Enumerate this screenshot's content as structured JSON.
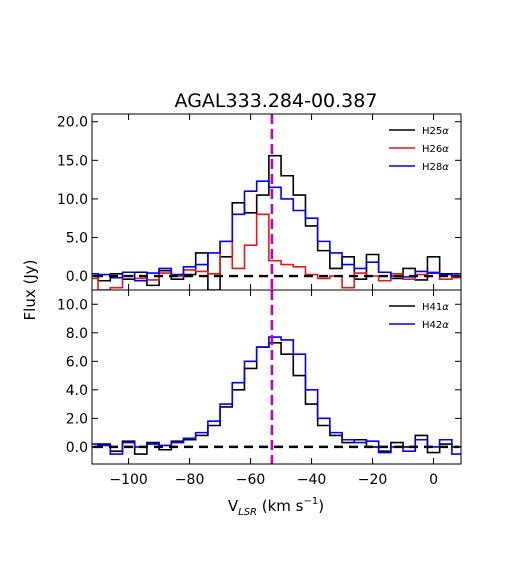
{
  "chart_data": [
    {
      "type": "line",
      "drawstyle": "steps-mid",
      "title": "AGAL333.284-00.387",
      "xlabel": "",
      "ylabel": "",
      "xlim": [
        -112,
        9
      ],
      "ylim": [
        -1.8,
        21.0
      ],
      "yticks": [
        0.0,
        5.0,
        10.0,
        15.0,
        20.0
      ],
      "ytick_labels": [
        "0.0",
        "5.0",
        "10.0",
        "15.0",
        "20.0"
      ],
      "x_tick_labels_shown": false,
      "grid": false,
      "legend_position": "top-right",
      "reference_lines": [
        {
          "kind": "horizontal",
          "y": 0,
          "style": "dashed",
          "color": "#000000"
        },
        {
          "kind": "vertical",
          "x": -53,
          "style": "dashed",
          "color": "#bf00bf"
        }
      ],
      "series": [
        {
          "name": "H25α",
          "color": "#000000",
          "x": [
            -112,
            -108,
            -104,
            -100,
            -96,
            -92,
            -88,
            -84,
            -80,
            -76,
            -72,
            -68,
            -64,
            -60,
            -56,
            -52,
            -48,
            -44,
            -40,
            -36,
            -32,
            -28,
            -24,
            -20,
            -16,
            -12,
            -8,
            -4,
            0,
            4,
            8
          ],
          "y": [
            0.0,
            -0.6,
            0.3,
            -0.4,
            0.5,
            -1.2,
            0.7,
            -0.4,
            0.2,
            3.0,
            -1.8,
            2.5,
            9.5,
            8.2,
            10.5,
            15.6,
            13.0,
            10.5,
            6.5,
            3.3,
            1.0,
            2.5,
            -0.4,
            2.8,
            0.5,
            -0.3,
            1.0,
            -0.5,
            2.5,
            0.3,
            0.0
          ]
        },
        {
          "name": "H26α",
          "color": "#e31a1c",
          "x": [
            -112,
            -108,
            -104,
            -100,
            -96,
            -92,
            -88,
            -84,
            -80,
            -76,
            -72,
            -68,
            -64,
            -60,
            -56,
            -52,
            -48,
            -44,
            -40,
            -36,
            -32,
            -28,
            -24,
            -20,
            -16,
            -12,
            -8,
            -4,
            0,
            4,
            8
          ],
          "y": [
            -0.3,
            -1.8,
            -1.5,
            0.0,
            -0.3,
            -0.5,
            0.4,
            0.0,
            0.8,
            0.6,
            0.3,
            4.5,
            1.0,
            4.0,
            8.0,
            2.0,
            1.5,
            1.2,
            0.2,
            -0.3,
            0.0,
            -1.5,
            0.4,
            0.0,
            -0.6,
            0.3,
            -0.4,
            0.2,
            0.5,
            -0.4,
            -0.2
          ]
        },
        {
          "name": "H28α",
          "color": "#0000ff",
          "x": [
            -112,
            -108,
            -104,
            -100,
            -96,
            -92,
            -88,
            -84,
            -80,
            -76,
            -72,
            -68,
            -64,
            -60,
            -56,
            -52,
            -48,
            -44,
            -40,
            -36,
            -32,
            -28,
            -24,
            -20,
            -16,
            -12,
            -8,
            -4,
            0,
            4,
            8
          ],
          "y": [
            0.3,
            0.2,
            -0.2,
            0.5,
            -0.6,
            0.4,
            1.0,
            0.2,
            1.2,
            1.5,
            3.0,
            4.5,
            8.0,
            11.0,
            12.3,
            11.5,
            10.0,
            8.5,
            7.5,
            4.5,
            3.0,
            1.5,
            1.0,
            1.8,
            0.5,
            0.0,
            -0.1,
            0.6,
            0.4,
            0.2,
            0.3
          ]
        }
      ]
    },
    {
      "type": "line",
      "drawstyle": "steps-mid",
      "title": "",
      "xlabel": "V$_{LSR}$ (km s$^{-1}$)",
      "ylabel": "",
      "xlim": [
        -112,
        9
      ],
      "ylim": [
        -1.2,
        11.0
      ],
      "yticks": [
        0.0,
        2.0,
        4.0,
        6.0,
        8.0,
        10.0
      ],
      "ytick_labels": [
        "0.0",
        "2.0",
        "4.0",
        "6.0",
        "8.0",
        "10.0"
      ],
      "xticks": [
        -100,
        -80,
        -60,
        -40,
        -20,
        0
      ],
      "xtick_labels": [
        "−100",
        "−80",
        "−60",
        "−40",
        "−20",
        "0"
      ],
      "grid": false,
      "legend_position": "top-right",
      "reference_lines": [
        {
          "kind": "horizontal",
          "y": 0,
          "style": "dashed",
          "color": "#000000"
        },
        {
          "kind": "vertical",
          "x": -53,
          "style": "dashed",
          "color": "#bf00bf"
        }
      ],
      "series": [
        {
          "name": "H41α",
          "color": "#000000",
          "x": [
            -112,
            -108,
            -104,
            -100,
            -96,
            -92,
            -88,
            -84,
            -80,
            -76,
            -72,
            -68,
            -64,
            -60,
            -56,
            -52,
            -48,
            -44,
            -40,
            -36,
            -32,
            -28,
            -24,
            -20,
            -16,
            -12,
            -8,
            -4,
            0,
            4,
            8
          ],
          "y": [
            0.0,
            0.2,
            -0.3,
            0.4,
            -0.5,
            0.3,
            -0.2,
            0.4,
            0.5,
            0.8,
            1.5,
            2.8,
            4.0,
            5.5,
            7.0,
            7.3,
            6.5,
            5.0,
            3.0,
            1.5,
            0.8,
            0.3,
            0.5,
            0.0,
            -0.3,
            0.3,
            0.0,
            0.8,
            -0.4,
            0.2,
            0.0
          ]
        },
        {
          "name": "H42α",
          "color": "#0000ff",
          "x": [
            -112,
            -108,
            -104,
            -100,
            -96,
            -92,
            -88,
            -84,
            -80,
            -76,
            -72,
            -68,
            -64,
            -60,
            -56,
            -52,
            -48,
            -44,
            -40,
            -36,
            -32,
            -28,
            -24,
            -20,
            -16,
            -12,
            -8,
            -4,
            0,
            4,
            8
          ],
          "y": [
            0.2,
            0.1,
            -0.5,
            0.3,
            0.0,
            0.2,
            0.1,
            0.3,
            0.6,
            1.0,
            1.8,
            3.0,
            4.5,
            6.0,
            7.0,
            7.7,
            7.5,
            6.5,
            4.0,
            2.0,
            1.0,
            0.5,
            0.3,
            0.4,
            -0.4,
            0.0,
            -0.3,
            0.5,
            0.0,
            0.5,
            -0.5
          ]
        }
      ]
    }
  ],
  "shared": {
    "ylabel": "Flux (Jy)"
  }
}
